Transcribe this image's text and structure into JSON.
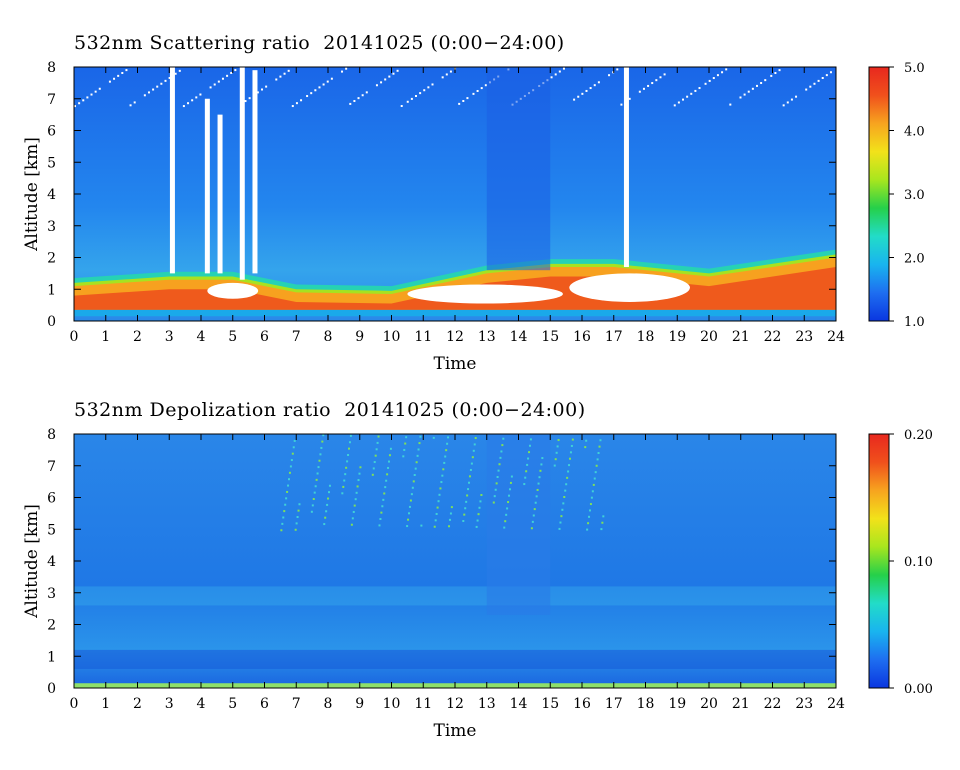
{
  "chart_data": [
    {
      "type": "heatmap",
      "title": "532nm Scattering ratio  20141025 (0:00−24:00)",
      "xlabel": "Time",
      "ylabel": "Altitude [km]",
      "x_ticks": [
        "0",
        "1",
        "2",
        "3",
        "4",
        "5",
        "6",
        "7",
        "8",
        "9",
        "10",
        "11",
        "12",
        "13",
        "14",
        "15",
        "16",
        "17",
        "18",
        "19",
        "20",
        "21",
        "22",
        "23",
        "24"
      ],
      "y_ticks": [
        "0",
        "1",
        "2",
        "3",
        "4",
        "5",
        "6",
        "7",
        "8"
      ],
      "xlim": [
        0,
        24
      ],
      "ylim": [
        0,
        8
      ],
      "colorbar": {
        "ticks": [
          "1.0",
          "2.0",
          "3.0",
          "4.0",
          "5.0"
        ],
        "range": [
          1.0,
          5.0
        ]
      },
      "colormap": [
        "#0a36e0",
        "#1e6ef0",
        "#19b4ef",
        "#22dcc8",
        "#25d04a",
        "#a8e61e",
        "#f2e21a",
        "#f7a41f",
        "#f0501c",
        "#e8281e"
      ],
      "boundary_layer": [
        {
          "x": 0,
          "top": 1.0
        },
        {
          "x": 3,
          "top": 1.2
        },
        {
          "x": 5,
          "top": 1.2
        },
        {
          "x": 7,
          "top": 0.8
        },
        {
          "x": 10,
          "top": 0.75
        },
        {
          "x": 13,
          "top": 1.4
        },
        {
          "x": 15,
          "top": 1.6
        },
        {
          "x": 17,
          "top": 1.6
        },
        {
          "x": 20,
          "top": 1.3
        },
        {
          "x": 24,
          "top": 1.9
        }
      ],
      "cloud_plumes": [
        {
          "x": 3.1,
          "bottom": 1.5,
          "top": 8.0
        },
        {
          "x": 4.2,
          "bottom": 1.5,
          "top": 7.0
        },
        {
          "x": 4.6,
          "bottom": 1.5,
          "top": 6.5
        },
        {
          "x": 5.3,
          "bottom": 1.3,
          "top": 8.0
        },
        {
          "x": 5.7,
          "bottom": 1.5,
          "top": 7.9
        },
        {
          "x": 17.4,
          "bottom": 1.7,
          "top": 8.0
        }
      ]
    },
    {
      "type": "heatmap",
      "title": "532nm Depolization ratio  20141025 (0:00−24:00)",
      "xlabel": "Time",
      "ylabel": "Altitude [km]",
      "x_ticks": [
        "0",
        "1",
        "2",
        "3",
        "4",
        "5",
        "6",
        "7",
        "8",
        "9",
        "10",
        "11",
        "12",
        "13",
        "14",
        "15",
        "16",
        "17",
        "18",
        "19",
        "20",
        "21",
        "22",
        "23",
        "24"
      ],
      "y_ticks": [
        "0",
        "1",
        "2",
        "3",
        "4",
        "5",
        "6",
        "7",
        "8"
      ],
      "xlim": [
        0,
        24
      ],
      "ylim": [
        0,
        8
      ],
      "colorbar": {
        "ticks": [
          "0.00",
          "0.10",
          "0.20"
        ],
        "range": [
          0.0,
          0.2
        ]
      },
      "colormap": [
        "#0a36e0",
        "#1e6ef0",
        "#19b4ef",
        "#22dcc8",
        "#25d04a",
        "#a8e61e",
        "#f2e21a",
        "#f7a41f",
        "#f0501c",
        "#e8281e"
      ]
    }
  ]
}
